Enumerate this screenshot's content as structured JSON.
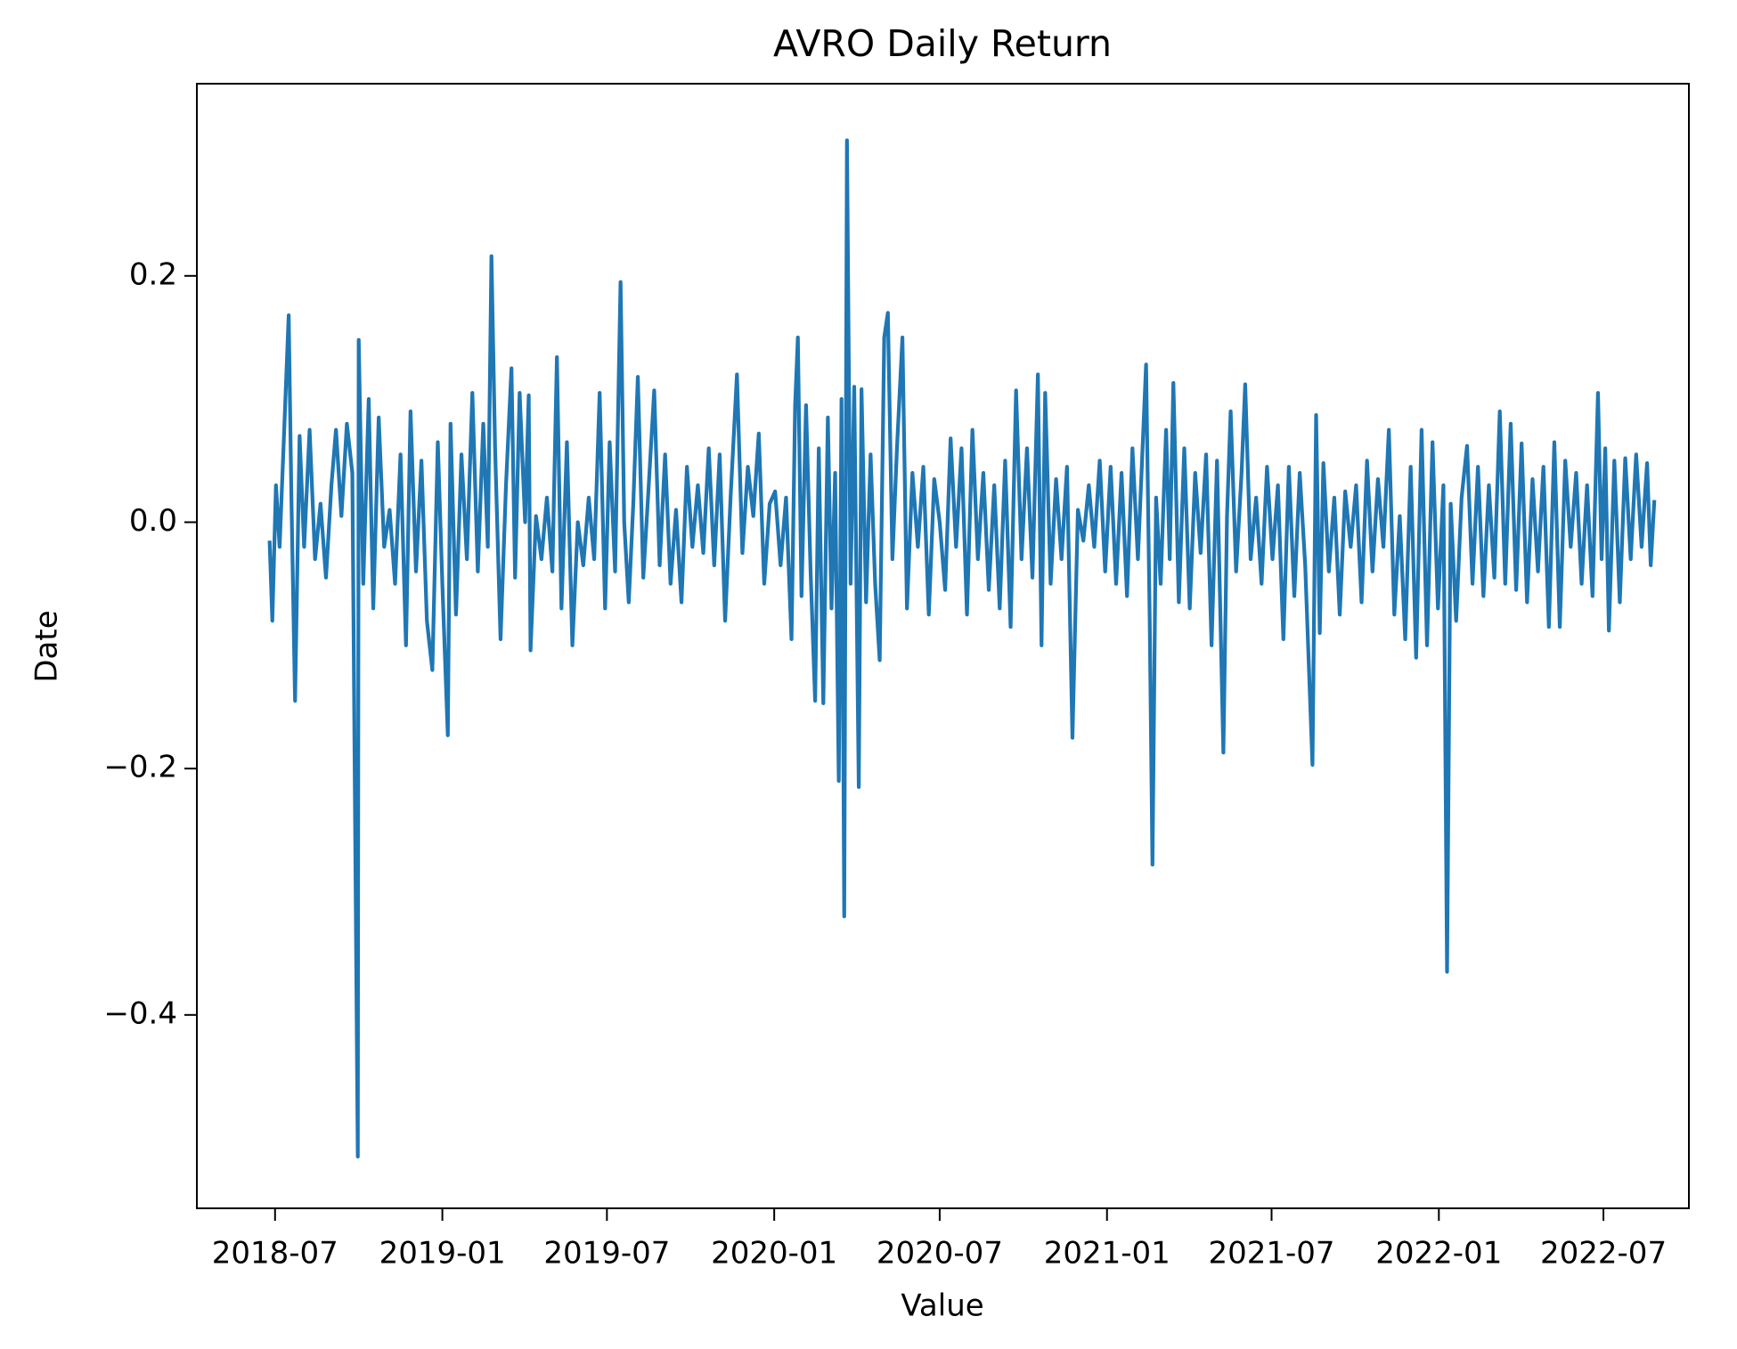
{
  "chart_data": {
    "type": "line",
    "title": "AVRO Daily Return",
    "x_label": "Value",
    "y_label": "Date",
    "xlim": [
      "2018-04-06",
      "2022-10-03"
    ],
    "xticks": [
      {
        "value": "2018-07-01",
        "label": "2018-07"
      },
      {
        "value": "2019-01-01",
        "label": "2019-01"
      },
      {
        "value": "2019-07-01",
        "label": "2019-07"
      },
      {
        "value": "2020-01-01",
        "label": "2020-01"
      },
      {
        "value": "2020-07-01",
        "label": "2020-07"
      },
      {
        "value": "2021-01-01",
        "label": "2021-01"
      },
      {
        "value": "2021-07-01",
        "label": "2021-07"
      },
      {
        "value": "2022-01-01",
        "label": "2022-01"
      },
      {
        "value": "2022-07-01",
        "label": "2022-07"
      }
    ],
    "ylim": [
      -0.557,
      0.356
    ],
    "yticks": [
      {
        "value": -0.4,
        "label": "−0.4"
      },
      {
        "value": -0.2,
        "label": "−0.2"
      },
      {
        "value": 0,
        "label": "0.0"
      },
      0.2
    ],
    "grid": false,
    "series": [
      {
        "color": "#1f77b4",
        "x": [
          "2018-06-25",
          "2018-06-28",
          "2018-07-02",
          "2018-07-06",
          "2018-07-10",
          "2018-07-16",
          "2018-07-19",
          "2018-07-23",
          "2018-07-28",
          "2018-08-02",
          "2018-08-08",
          "2018-08-14",
          "2018-08-20",
          "2018-08-26",
          "2018-09-01",
          "2018-09-06",
          "2018-09-12",
          "2018-09-18",
          "2018-09-24",
          "2018-09-30",
          "2018-10-01",
          "2018-10-06",
          "2018-10-12",
          "2018-10-17",
          "2018-10-23",
          "2018-10-29",
          "2018-11-04",
          "2018-11-10",
          "2018-11-16",
          "2018-11-22",
          "2018-11-27",
          "2018-12-03",
          "2018-12-09",
          "2018-12-15",
          "2018-12-21",
          "2018-12-27",
          "2019-01-01",
          "2019-01-07",
          "2019-01-10",
          "2019-01-16",
          "2019-01-22",
          "2019-01-28",
          "2019-02-03",
          "2019-02-09",
          "2019-02-15",
          "2019-02-20",
          "2019-02-24",
          "2019-02-28",
          "2019-03-06",
          "2019-03-12",
          "2019-03-18",
          "2019-03-22",
          "2019-03-27",
          "2019-04-02",
          "2019-04-06",
          "2019-04-08",
          "2019-04-14",
          "2019-04-20",
          "2019-04-26",
          "2019-05-02",
          "2019-05-07",
          "2019-05-12",
          "2019-05-18",
          "2019-05-24",
          "2019-05-30",
          "2019-06-05",
          "2019-06-11",
          "2019-06-17",
          "2019-06-23",
          "2019-06-29",
          "2019-07-04",
          "2019-07-10",
          "2019-07-16",
          "2019-07-20",
          "2019-07-25",
          "2019-07-30",
          "2019-08-04",
          "2019-08-10",
          "2019-08-16",
          "2019-08-22",
          "2019-08-28",
          "2019-09-03",
          "2019-09-09",
          "2019-09-15",
          "2019-09-21",
          "2019-09-27",
          "2019-10-03",
          "2019-10-09",
          "2019-10-15",
          "2019-10-21",
          "2019-10-27",
          "2019-11-02",
          "2019-11-08",
          "2019-11-14",
          "2019-11-21",
          "2019-11-27",
          "2019-12-03",
          "2019-12-09",
          "2019-12-15",
          "2019-12-21",
          "2019-12-27",
          "2020-01-02",
          "2020-01-08",
          "2020-01-14",
          "2020-01-20",
          "2020-01-24",
          "2020-01-27",
          "2020-01-31",
          "2020-02-05",
          "2020-02-10",
          "2020-02-15",
          "2020-02-19",
          "2020-02-24",
          "2020-02-29",
          "2020-03-04",
          "2020-03-08",
          "2020-03-12",
          "2020-03-15",
          "2020-03-18",
          "2020-03-21",
          "2020-03-25",
          "2020-03-29",
          "2020-04-03",
          "2020-04-06",
          "2020-04-11",
          "2020-04-16",
          "2020-04-21",
          "2020-04-26",
          "2020-05-01",
          "2020-05-05",
          "2020-05-10",
          "2020-05-15",
          "2020-05-21",
          "2020-05-26",
          "2020-06-01",
          "2020-06-07",
          "2020-06-13",
          "2020-06-19",
          "2020-06-25",
          "2020-07-01",
          "2020-07-07",
          "2020-07-13",
          "2020-07-19",
          "2020-07-25",
          "2020-07-31",
          "2020-08-06",
          "2020-08-12",
          "2020-08-18",
          "2020-08-24",
          "2020-08-30",
          "2020-09-05",
          "2020-09-11",
          "2020-09-17",
          "2020-09-23",
          "2020-09-29",
          "2020-10-05",
          "2020-10-11",
          "2020-10-17",
          "2020-10-21",
          "2020-10-25",
          "2020-10-31",
          "2020-11-06",
          "2020-11-12",
          "2020-11-18",
          "2020-11-24",
          "2020-11-30",
          "2020-12-06",
          "2020-12-12",
          "2020-12-18",
          "2020-12-24",
          "2020-12-30",
          "2021-01-05",
          "2021-01-11",
          "2021-01-17",
          "2021-01-23",
          "2021-01-29",
          "2021-02-04",
          "2021-02-13",
          "2021-02-17",
          "2021-02-20",
          "2021-02-24",
          "2021-03-01",
          "2021-03-07",
          "2021-03-11",
          "2021-03-15",
          "2021-03-21",
          "2021-03-27",
          "2021-04-02",
          "2021-04-08",
          "2021-04-14",
          "2021-04-20",
          "2021-04-26",
          "2021-05-02",
          "2021-05-09",
          "2021-05-13",
          "2021-05-17",
          "2021-05-23",
          "2021-05-29",
          "2021-06-02",
          "2021-06-08",
          "2021-06-14",
          "2021-06-20",
          "2021-06-26",
          "2021-07-02",
          "2021-07-08",
          "2021-07-14",
          "2021-07-20",
          "2021-07-26",
          "2021-08-01",
          "2021-08-07",
          "2021-08-15",
          "2021-08-19",
          "2021-08-23",
          "2021-08-27",
          "2021-09-02",
          "2021-09-08",
          "2021-09-14",
          "2021-09-20",
          "2021-09-26",
          "2021-10-02",
          "2021-10-08",
          "2021-10-14",
          "2021-10-20",
          "2021-10-26",
          "2021-11-01",
          "2021-11-07",
          "2021-11-13",
          "2021-11-19",
          "2021-11-25",
          "2021-12-01",
          "2021-12-07",
          "2021-12-13",
          "2021-12-19",
          "2021-12-25",
          "2021-12-31",
          "2022-01-06",
          "2022-01-10",
          "2022-01-14",
          "2022-01-20",
          "2022-01-26",
          "2022-02-01",
          "2022-02-07",
          "2022-02-13",
          "2022-02-19",
          "2022-02-25",
          "2022-03-03",
          "2022-03-09",
          "2022-03-15",
          "2022-03-21",
          "2022-03-27",
          "2022-04-02",
          "2022-04-08",
          "2022-04-14",
          "2022-04-20",
          "2022-04-26",
          "2022-05-02",
          "2022-05-08",
          "2022-05-14",
          "2022-05-20",
          "2022-05-26",
          "2022-06-01",
          "2022-06-07",
          "2022-06-13",
          "2022-06-19",
          "2022-06-25",
          "2022-06-29",
          "2022-07-03",
          "2022-07-07",
          "2022-07-13",
          "2022-07-19",
          "2022-07-25",
          "2022-07-31",
          "2022-08-06",
          "2022-08-12",
          "2022-08-18",
          "2022-08-22",
          "2022-08-26"
        ],
        "values": [
          -0.015,
          -0.08,
          0.03,
          -0.02,
          0.055,
          0.168,
          0.02,
          -0.145,
          0.07,
          -0.02,
          0.075,
          -0.03,
          0.015,
          -0.045,
          0.03,
          0.075,
          0.005,
          0.08,
          0.04,
          -0.515,
          0.148,
          -0.05,
          0.1,
          -0.07,
          0.085,
          -0.02,
          0.01,
          -0.05,
          0.055,
          -0.1,
          0.09,
          -0.04,
          0.05,
          -0.08,
          -0.12,
          0.065,
          -0.05,
          -0.173,
          0.08,
          -0.075,
          0.055,
          -0.03,
          0.105,
          -0.04,
          0.08,
          -0.02,
          0.216,
          0.06,
          -0.095,
          0.03,
          0.125,
          -0.045,
          0.105,
          0.0,
          0.103,
          -0.104,
          0.005,
          -0.03,
          0.02,
          -0.04,
          0.134,
          -0.07,
          0.065,
          -0.1,
          0.0,
          -0.035,
          0.02,
          -0.03,
          0.105,
          -0.07,
          0.065,
          -0.04,
          0.195,
          0.0,
          -0.065,
          0.015,
          0.118,
          -0.045,
          0.03,
          0.107,
          -0.035,
          0.055,
          -0.05,
          0.01,
          -0.065,
          0.045,
          -0.02,
          0.03,
          -0.025,
          0.06,
          -0.035,
          0.055,
          -0.08,
          0.02,
          0.12,
          -0.025,
          0.045,
          0.005,
          0.072,
          -0.05,
          0.015,
          0.025,
          -0.035,
          0.02,
          -0.095,
          0.095,
          0.15,
          -0.06,
          0.095,
          -0.04,
          -0.145,
          0.06,
          -0.147,
          0.085,
          -0.07,
          0.04,
          -0.21,
          0.1,
          -0.32,
          0.31,
          -0.05,
          0.11,
          -0.215,
          0.108,
          -0.065,
          0.055,
          -0.05,
          -0.112,
          0.15,
          0.17,
          -0.03,
          0.06,
          0.15,
          -0.07,
          0.04,
          -0.02,
          0.045,
          -0.075,
          0.035,
          0.0,
          -0.055,
          0.068,
          -0.02,
          0.06,
          -0.075,
          0.075,
          -0.03,
          0.04,
          -0.055,
          0.03,
          -0.07,
          0.05,
          -0.085,
          0.107,
          -0.03,
          0.06,
          -0.045,
          0.12,
          -0.1,
          0.105,
          -0.05,
          0.035,
          -0.03,
          0.045,
          -0.175,
          0.01,
          -0.015,
          0.03,
          -0.02,
          0.05,
          -0.04,
          0.045,
          -0.05,
          0.04,
          -0.06,
          0.06,
          -0.03,
          0.128,
          -0.08,
          -0.278,
          0.02,
          -0.05,
          0.075,
          -0.03,
          0.113,
          -0.065,
          0.06,
          -0.07,
          0.04,
          -0.025,
          0.055,
          -0.1,
          0.05,
          -0.187,
          0.005,
          0.09,
          -0.04,
          0.04,
          0.112,
          -0.03,
          0.02,
          -0.05,
          0.045,
          -0.03,
          0.03,
          -0.095,
          0.045,
          -0.06,
          0.04,
          -0.035,
          -0.197,
          0.087,
          -0.09,
          0.048,
          -0.04,
          0.02,
          -0.075,
          0.025,
          -0.02,
          0.03,
          -0.065,
          0.05,
          -0.04,
          0.035,
          -0.02,
          0.075,
          -0.075,
          0.005,
          -0.095,
          0.045,
          -0.11,
          0.075,
          -0.1,
          0.065,
          -0.07,
          0.03,
          -0.365,
          0.015,
          -0.08,
          0.02,
          0.062,
          -0.05,
          0.045,
          -0.06,
          0.03,
          -0.045,
          0.09,
          -0.05,
          0.08,
          -0.055,
          0.064,
          -0.065,
          0.035,
          -0.04,
          0.045,
          -0.085,
          0.065,
          -0.085,
          0.05,
          -0.02,
          0.04,
          -0.05,
          0.03,
          -0.06,
          0.105,
          -0.03,
          0.06,
          -0.088,
          0.05,
          -0.065,
          0.052,
          -0.03,
          0.055,
          -0.02,
          0.048,
          -0.035,
          0.018
        ]
      }
    ]
  }
}
